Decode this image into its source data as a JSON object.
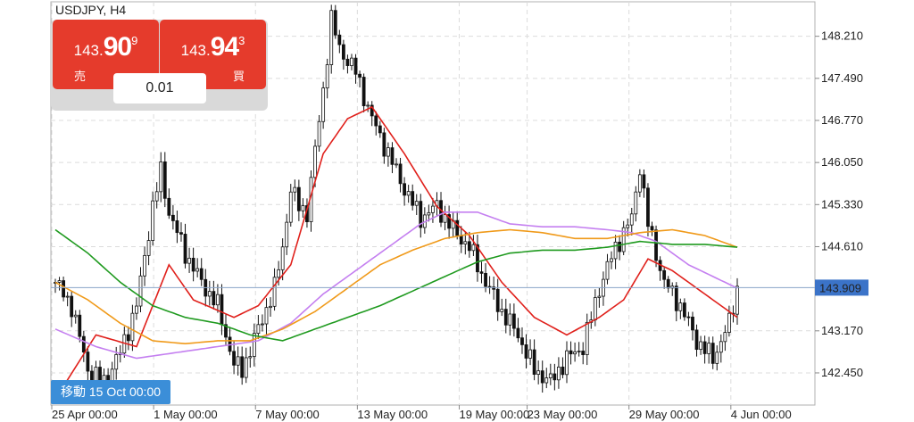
{
  "symbol": {
    "title": "USDJPY, H4"
  },
  "trade_panel": {
    "sell": {
      "price_prefix": "143.",
      "price_big": "90",
      "price_sup": "9",
      "label": "売"
    },
    "buy": {
      "price_prefix": "143.",
      "price_big": "94",
      "price_sup": "3",
      "label": "買"
    },
    "lot": "0.01"
  },
  "crosshair_tag": "移動 15 Oct 00:00",
  "colors": {
    "ma_red": "#e0201b",
    "ma_violet": "#c47ff0",
    "ma_orange": "#f09a1a",
    "ma_green": "#1f9a1f",
    "price_tag": "#3b73c8",
    "sell_button": "#e53b2c"
  },
  "price_axis": {
    "ticks": [
      "148.210",
      "147.490",
      "146.770",
      "146.050",
      "145.330",
      "144.610",
      "143.170",
      "142.450"
    ],
    "current_price": "143.909"
  },
  "time_axis": {
    "labels": [
      "25 Apr 00:00",
      "1 May 00:00",
      "7 May 00:00",
      "13 May 00:00",
      "19 May 00:00",
      "23 May 00:00",
      "29 May 00:00",
      "4 Jun 00:00"
    ]
  },
  "chart_data": {
    "type": "candlestick",
    "symbol": "USDJPY",
    "timeframe": "H4",
    "ylim": [
      141.9,
      148.8
    ],
    "x_start": "25 Apr 00:00",
    "current_price": 143.909,
    "indicators": [
      "ma_red",
      "ma_violet",
      "ma_orange",
      "ma_green"
    ],
    "close_anchors": [
      [
        0,
        144.0
      ],
      [
        4,
        143.6
      ],
      [
        8,
        142.5
      ],
      [
        12,
        142.3
      ],
      [
        16,
        142.8
      ],
      [
        20,
        143.6
      ],
      [
        24,
        145.3
      ],
      [
        26,
        145.9
      ],
      [
        28,
        145.2
      ],
      [
        32,
        144.5
      ],
      [
        36,
        144.0
      ],
      [
        40,
        143.6
      ],
      [
        44,
        142.6
      ],
      [
        46,
        142.5
      ],
      [
        50,
        143.2
      ],
      [
        54,
        143.9
      ],
      [
        56,
        144.6
      ],
      [
        58,
        145.6
      ],
      [
        60,
        145.3
      ],
      [
        62,
        145.2
      ],
      [
        66,
        147.3
      ],
      [
        68,
        148.5
      ],
      [
        70,
        148.0
      ],
      [
        74,
        147.6
      ],
      [
        78,
        146.8
      ],
      [
        82,
        146.2
      ],
      [
        86,
        145.6
      ],
      [
        90,
        145.1
      ],
      [
        94,
        145.3
      ],
      [
        98,
        144.9
      ],
      [
        102,
        144.6
      ],
      [
        106,
        144.0
      ],
      [
        110,
        143.5
      ],
      [
        114,
        143.1
      ],
      [
        118,
        142.5
      ],
      [
        122,
        142.3
      ],
      [
        126,
        142.7
      ],
      [
        130,
        142.9
      ],
      [
        134,
        143.9
      ],
      [
        138,
        144.6
      ],
      [
        142,
        145.1
      ],
      [
        144,
        146.0
      ],
      [
        146,
        145.0
      ],
      [
        150,
        144.0
      ],
      [
        154,
        143.6
      ],
      [
        158,
        143.0
      ],
      [
        162,
        142.7
      ],
      [
        166,
        143.3
      ],
      [
        168,
        143.9
      ]
    ],
    "ma_red": [
      [
        0,
        142.0
      ],
      [
        10,
        143.1
      ],
      [
        20,
        142.9
      ],
      [
        28,
        144.3
      ],
      [
        34,
        143.7
      ],
      [
        44,
        143.4
      ],
      [
        50,
        143.6
      ],
      [
        58,
        144.3
      ],
      [
        66,
        146.2
      ],
      [
        72,
        146.8
      ],
      [
        78,
        147.0
      ],
      [
        86,
        146.2
      ],
      [
        94,
        145.3
      ],
      [
        102,
        144.8
      ],
      [
        110,
        144.0
      ],
      [
        118,
        143.4
      ],
      [
        126,
        143.1
      ],
      [
        134,
        143.4
      ],
      [
        140,
        143.7
      ],
      [
        146,
        144.4
      ],
      [
        152,
        144.2
      ],
      [
        160,
        143.8
      ],
      [
        168,
        143.4
      ]
    ],
    "ma_violet": [
      [
        0,
        143.2
      ],
      [
        10,
        142.9
      ],
      [
        20,
        142.7
      ],
      [
        30,
        142.8
      ],
      [
        40,
        142.9
      ],
      [
        50,
        143.0
      ],
      [
        58,
        143.3
      ],
      [
        66,
        143.8
      ],
      [
        74,
        144.2
      ],
      [
        82,
        144.6
      ],
      [
        90,
        145.0
      ],
      [
        96,
        145.2
      ],
      [
        104,
        145.2
      ],
      [
        112,
        145.0
      ],
      [
        120,
        144.95
      ],
      [
        128,
        144.95
      ],
      [
        136,
        144.9
      ],
      [
        142,
        144.85
      ],
      [
        148,
        144.7
      ],
      [
        156,
        144.3
      ],
      [
        162,
        144.1
      ],
      [
        168,
        143.9
      ]
    ],
    "ma_orange": [
      [
        0,
        144.0
      ],
      [
        8,
        143.7
      ],
      [
        16,
        143.3
      ],
      [
        24,
        143.0
      ],
      [
        32,
        142.95
      ],
      [
        40,
        143.0
      ],
      [
        48,
        143.0
      ],
      [
        56,
        143.2
      ],
      [
        64,
        143.5
      ],
      [
        72,
        143.9
      ],
      [
        80,
        144.3
      ],
      [
        88,
        144.55
      ],
      [
        96,
        144.75
      ],
      [
        104,
        144.85
      ],
      [
        112,
        144.9
      ],
      [
        120,
        144.85
      ],
      [
        128,
        144.75
      ],
      [
        136,
        144.75
      ],
      [
        144,
        144.85
      ],
      [
        152,
        144.9
      ],
      [
        160,
        144.8
      ],
      [
        168,
        144.6
      ]
    ],
    "ma_green": [
      [
        0,
        144.9
      ],
      [
        8,
        144.5
      ],
      [
        16,
        144.0
      ],
      [
        24,
        143.6
      ],
      [
        32,
        143.4
      ],
      [
        40,
        143.3
      ],
      [
        48,
        143.1
      ],
      [
        56,
        143.0
      ],
      [
        64,
        143.2
      ],
      [
        72,
        143.4
      ],
      [
        80,
        143.6
      ],
      [
        88,
        143.85
      ],
      [
        96,
        144.1
      ],
      [
        104,
        144.35
      ],
      [
        112,
        144.5
      ],
      [
        120,
        144.55
      ],
      [
        128,
        144.55
      ],
      [
        136,
        144.6
      ],
      [
        144,
        144.7
      ],
      [
        152,
        144.65
      ],
      [
        160,
        144.65
      ],
      [
        168,
        144.6
      ]
    ]
  }
}
